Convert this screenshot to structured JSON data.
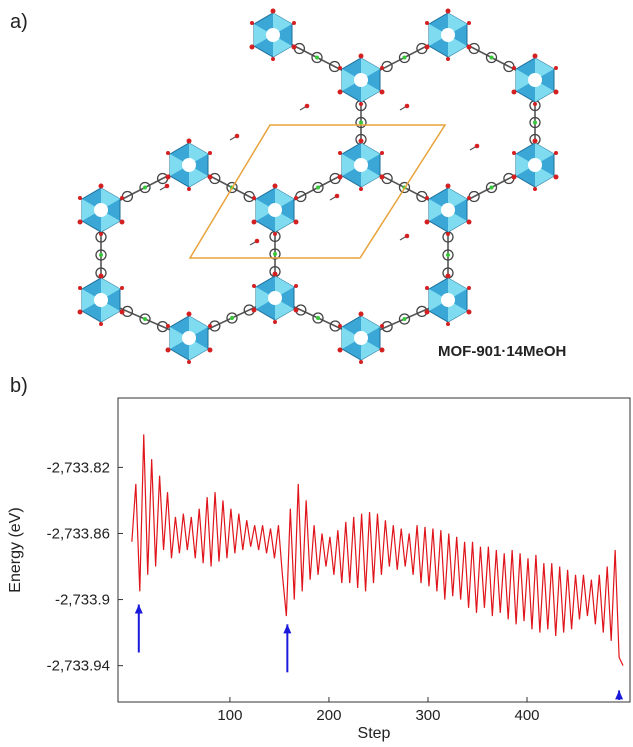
{
  "panel_a": {
    "label": "a)",
    "structure_label": "MOF-901·14MeOH"
  },
  "chart_data": {
    "type": "line",
    "panel_label": "b)",
    "xlabel": "Step",
    "ylabel": "Energy  (eV)",
    "color": "#e0151b",
    "x": [
      1,
      5,
      9,
      13,
      17,
      21,
      25,
      29,
      33,
      37,
      41,
      45,
      49,
      53,
      57,
      61,
      65,
      69,
      73,
      77,
      81,
      85,
      89,
      93,
      97,
      101,
      105,
      109,
      113,
      117,
      121,
      125,
      129,
      133,
      137,
      141,
      145,
      149,
      153,
      157,
      161,
      165,
      169,
      173,
      177,
      181,
      185,
      189,
      193,
      197,
      201,
      205,
      209,
      213,
      217,
      221,
      225,
      229,
      233,
      237,
      241,
      245,
      249,
      253,
      257,
      261,
      265,
      269,
      273,
      277,
      281,
      285,
      289,
      293,
      297,
      301,
      305,
      309,
      313,
      317,
      321,
      325,
      329,
      333,
      337,
      341,
      345,
      349,
      353,
      357,
      361,
      365,
      369,
      373,
      377,
      381,
      385,
      389,
      393,
      397,
      401,
      405,
      409,
      413,
      417,
      421,
      425,
      429,
      433,
      437,
      441,
      445,
      449,
      453,
      457,
      461,
      465,
      469,
      473,
      477,
      481,
      485,
      489,
      493,
      497
    ],
    "values": [
      -2733.865,
      -2733.83,
      -2733.895,
      -2733.8,
      -2733.885,
      -2733.815,
      -2733.88,
      -2733.825,
      -2733.87,
      -2733.835,
      -2733.875,
      -2733.85,
      -2733.872,
      -2733.848,
      -2733.87,
      -2733.85,
      -2733.875,
      -2733.845,
      -2733.878,
      -2733.838,
      -2733.88,
      -2733.835,
      -2733.877,
      -2733.84,
      -2733.875,
      -2733.845,
      -2733.872,
      -2733.848,
      -2733.87,
      -2733.852,
      -2733.868,
      -2733.855,
      -2733.87,
      -2733.855,
      -2733.872,
      -2733.857,
      -2733.875,
      -2733.855,
      -2733.885,
      -2733.91,
      -2733.845,
      -2733.9,
      -2733.83,
      -2733.895,
      -2733.84,
      -2733.888,
      -2733.855,
      -2733.885,
      -2733.86,
      -2733.88,
      -2733.862,
      -2733.885,
      -2733.858,
      -2733.89,
      -2733.853,
      -2733.89,
      -2733.85,
      -2733.893,
      -2733.848,
      -2733.895,
      -2733.847,
      -2733.89,
      -2733.848,
      -2733.885,
      -2733.852,
      -2733.88,
      -2733.855,
      -2733.882,
      -2733.857,
      -2733.88,
      -2733.86,
      -2733.885,
      -2733.855,
      -2733.89,
      -2733.856,
      -2733.892,
      -2733.857,
      -2733.895,
      -2733.858,
      -2733.9,
      -2733.86,
      -2733.898,
      -2733.862,
      -2733.9,
      -2733.865,
      -2733.905,
      -2733.865,
      -2733.908,
      -2733.868,
      -2733.905,
      -2733.868,
      -2733.91,
      -2733.87,
      -2733.908,
      -2733.872,
      -2733.912,
      -2733.87,
      -2733.915,
      -2733.872,
      -2733.913,
      -2733.875,
      -2733.918,
      -2733.873,
      -2733.92,
      -2733.878,
      -2733.918,
      -2733.878,
      -2733.922,
      -2733.88,
      -2733.92,
      -2733.882,
      -2733.918,
      -2733.885,
      -2733.912,
      -2733.885,
      -2733.91,
      -2733.888,
      -2733.915,
      -2733.885,
      -2733.92,
      -2733.88,
      -2733.925,
      -2733.87,
      -2733.935,
      -2733.94
    ],
    "xlim": [
      -13,
      504
    ],
    "xticks": [
      100,
      200,
      300,
      400
    ],
    "ylim": [
      -2733.962,
      -2733.778
    ],
    "yticks": [
      {
        "value": -2733.82,
        "label": "-2,733.82"
      },
      {
        "value": -2733.86,
        "label": "-2,733.86"
      },
      {
        "value": -2733.9,
        "label": "-2,733.9"
      },
      {
        "value": -2733.94,
        "label": "-2,733.94"
      }
    ],
    "arrows": {
      "color": "#1a1adb",
      "x": [
        8,
        158,
        493
      ],
      "y": [
        -2733.903,
        -2733.915,
        -2733.955
      ]
    }
  }
}
